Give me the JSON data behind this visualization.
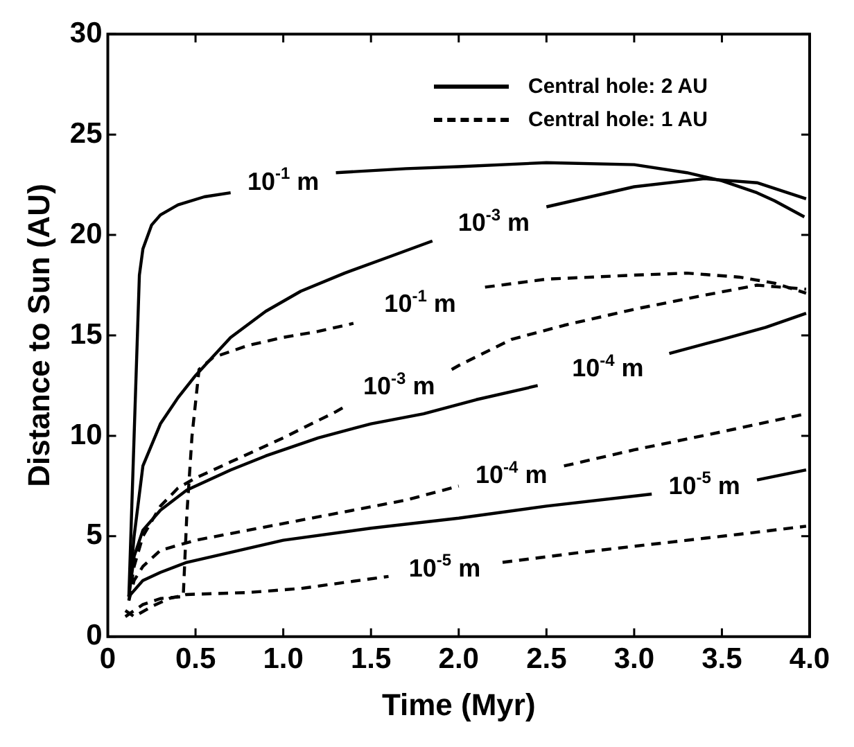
{
  "chart_data": {
    "type": "line",
    "xlabel": "Time (Myr)",
    "ylabel": "Distance to Sun (AU)",
    "xlim": [
      0,
      4
    ],
    "ylim": [
      0,
      30
    ],
    "xticks": [
      0,
      0.5,
      {
        "value": 1,
        "label": "1.0"
      },
      1.5,
      {
        "value": 2,
        "label": "2.0"
      },
      2.5,
      {
        "value": 3,
        "label": "3.0"
      },
      3.5,
      {
        "value": 4,
        "label": "4.0"
      }
    ],
    "yticks": [
      0,
      5,
      10,
      15,
      20,
      25,
      30
    ],
    "annotations": [
      "Central hole: 2 AU",
      "Central hole: 1 AU"
    ],
    "series": [
      {
        "name": "10$^{-1}$ m",
        "color": "#000000",
        "line_style": "solid",
        "x": [
          0.12,
          0.15,
          0.18,
          0.2,
          0.25,
          0.3,
          0.4,
          0.55,
          0.7,
          1.0,
          1.3,
          1.7,
          2.0,
          2.5,
          3.0,
          3.3,
          3.5,
          3.7,
          3.8,
          3.97
        ],
        "values": [
          2.0,
          10,
          18,
          19.3,
          20.5,
          21,
          21.5,
          21.9,
          22.1,
          null,
          23.1,
          23.3,
          23.4,
          23.6,
          23.5,
          23.1,
          22.7,
          22.1,
          21.7,
          20.9
        ]
      },
      {
        "name": "10$^{-3}$ m",
        "color": "#000000",
        "line_style": "solid",
        "x": [
          0.12,
          0.15,
          0.2,
          0.3,
          0.4,
          0.5,
          0.7,
          0.9,
          1.1,
          1.35,
          1.6,
          1.85,
          2.2,
          2.5,
          3.0,
          3.4,
          3.7,
          3.98
        ],
        "values": [
          2.0,
          5,
          8.5,
          10.6,
          11.9,
          13,
          14.9,
          16.2,
          17.2,
          18.1,
          18.9,
          19.7,
          null,
          21.4,
          22.4,
          22.8,
          22.6,
          21.8
        ]
      },
      {
        "name": "10$^{-4}$ m",
        "color": "#000000",
        "line_style": "solid",
        "x": [
          0.12,
          0.15,
          0.2,
          0.3,
          0.45,
          0.7,
          0.9,
          1.2,
          1.5,
          1.8,
          2.1,
          2.45,
          2.85,
          3.2,
          3.5,
          3.75,
          3.98
        ],
        "values": [
          2.0,
          4.0,
          5.3,
          6.3,
          7.3,
          8.3,
          9.0,
          9.9,
          10.6,
          11.1,
          11.8,
          12.5,
          null,
          14.1,
          14.8,
          15.4,
          16.1
        ]
      },
      {
        "name": "10$^{-5}$ m",
        "color": "#000000",
        "line_style": "solid",
        "x": [
          0.12,
          0.2,
          0.3,
          0.45,
          0.7,
          1.0,
          1.5,
          2.0,
          2.5,
          3.1,
          3.4,
          3.7,
          3.98
        ],
        "values": [
          2.0,
          2.8,
          3.2,
          3.7,
          4.2,
          4.8,
          5.4,
          5.9,
          6.5,
          7.1,
          null,
          7.8,
          8.3
        ]
      },
      {
        "name": "10$^{-1}$ m",
        "color": "#000000",
        "line_style": "dashed",
        "x": [
          0.1,
          0.2,
          0.3,
          0.43,
          0.45,
          0.48,
          0.52,
          0.6,
          0.8,
          1.0,
          1.2,
          1.4,
          1.78,
          2.15,
          2.5,
          3.0,
          3.3,
          3.6,
          3.8,
          3.98
        ],
        "values": [
          1.0,
          1.6,
          1.9,
          2.0,
          6,
          10,
          13.3,
          13.9,
          14.5,
          14.9,
          15.2,
          15.6,
          null,
          17.4,
          17.8,
          18.0,
          18.1,
          17.9,
          17.6,
          17.1
        ]
      },
      {
        "name": "10$^{-3}$ m",
        "color": "#000000",
        "line_style": "dashed",
        "x": [
          0.12,
          0.15,
          0.2,
          0.3,
          0.4,
          0.5,
          0.7,
          1.0,
          1.3,
          1.36,
          1.66,
          1.96,
          2.0,
          2.3,
          2.6,
          3.0,
          3.4,
          3.7,
          3.98
        ],
        "values": [
          1.8,
          3.5,
          5.0,
          6.5,
          7.4,
          7.9,
          8.7,
          9.9,
          11.2,
          11.5,
          null,
          13.3,
          13.5,
          14.8,
          15.5,
          16.3,
          17.0,
          17.5,
          17.3
        ]
      },
      {
        "name": "10$^{-4}$ m",
        "color": "#000000",
        "line_style": "dashed",
        "x": [
          0.12,
          0.15,
          0.2,
          0.3,
          0.5,
          0.8,
          1.1,
          1.4,
          1.7,
          2.0,
          2.3,
          2.6,
          3.0,
          3.5,
          3.98
        ],
        "values": [
          1.8,
          2.8,
          3.5,
          4.3,
          4.8,
          5.3,
          5.8,
          6.3,
          6.8,
          7.5,
          null,
          8.5,
          9.3,
          10.2,
          11.1
        ]
      },
      {
        "name": "10$^{-5}$ m",
        "color": "#000000",
        "line_style": "dashed",
        "x": [
          0.1,
          0.15,
          0.25,
          0.35,
          0.45,
          0.8,
          1.1,
          1.35,
          1.6,
          1.92,
          2.25,
          2.7,
          3.2,
          3.6,
          3.98
        ],
        "values": [
          1.3,
          1.0,
          1.5,
          1.9,
          2.1,
          2.2,
          2.4,
          2.7,
          3.0,
          null,
          3.7,
          4.2,
          4.7,
          5.1,
          5.5
        ]
      }
    ]
  }
}
